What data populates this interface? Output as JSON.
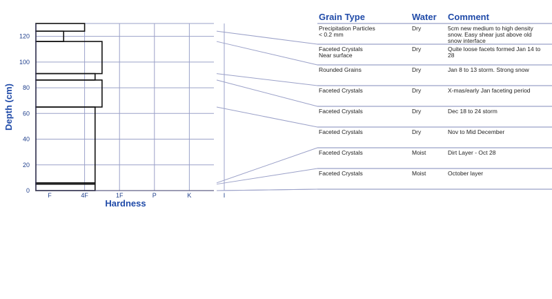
{
  "chart_data": {
    "type": "snow-profile",
    "xlabel": "Hardness",
    "ylabel": "Depth (cm)",
    "ylim": [
      0,
      130
    ],
    "y_ticks": [
      0,
      20,
      40,
      60,
      80,
      100,
      120
    ],
    "hardness_scale": [
      "F",
      "4F",
      "1F",
      "P",
      "K",
      "I"
    ],
    "grid": true,
    "layers": [
      {
        "top": 130,
        "bottom": 124,
        "hardness": 1.0
      },
      {
        "top": 124,
        "bottom": 116,
        "hardness": 0.4
      },
      {
        "top": 116,
        "bottom": 91,
        "hardness": 1.5
      },
      {
        "top": 91,
        "bottom": 86,
        "hardness": 1.3
      },
      {
        "top": 86,
        "bottom": 65,
        "hardness": 1.5
      },
      {
        "top": 65,
        "bottom": 6,
        "hardness": 1.3
      },
      {
        "top": 6,
        "bottom": 5,
        "hardness": 1.3
      },
      {
        "top": 5,
        "bottom": 0,
        "hardness": 1.3
      }
    ],
    "table": {
      "headers": {
        "grain": "Grain Type",
        "water": "Water",
        "comment": "Comment"
      },
      "rows": [
        {
          "depth": 124,
          "grain": [
            "Precipitation Particles",
            "< 0.2 mm"
          ],
          "water": "Dry",
          "comment": [
            "5cm new medium to high density",
            "snow. Easy shear just above old",
            "snow interface"
          ]
        },
        {
          "depth": 116,
          "grain": [
            "Faceted Crystals",
            "Near surface"
          ],
          "water": "Dry",
          "comment": [
            "Quite loose facets formed Jan 14 to",
            "28"
          ]
        },
        {
          "depth": 91,
          "grain": [
            "Rounded Grains"
          ],
          "water": "Dry",
          "comment": [
            "Jan 8 to 13 storm. Strong snow"
          ]
        },
        {
          "depth": 86,
          "grain": [
            "Faceted Crystals"
          ],
          "water": "Dry",
          "comment": [
            "X-mas/early Jan faceting period"
          ]
        },
        {
          "depth": 65,
          "grain": [
            "Faceted Crystals"
          ],
          "water": "Dry",
          "comment": [
            "Dec 18 to 24 storm"
          ]
        },
        {
          "depth": 6,
          "grain": [
            "Faceted Crystals"
          ],
          "water": "Dry",
          "comment": [
            "Nov to Mid December"
          ]
        },
        {
          "depth": 5,
          "grain": [
            "Faceted Crystals"
          ],
          "water": "Moist",
          "comment": [
            "Dirt Layer - Oct 28"
          ]
        },
        {
          "depth": 0,
          "grain": [
            "Faceted Crystals"
          ],
          "water": "Moist",
          "comment": [
            "October layer"
          ]
        }
      ]
    }
  }
}
